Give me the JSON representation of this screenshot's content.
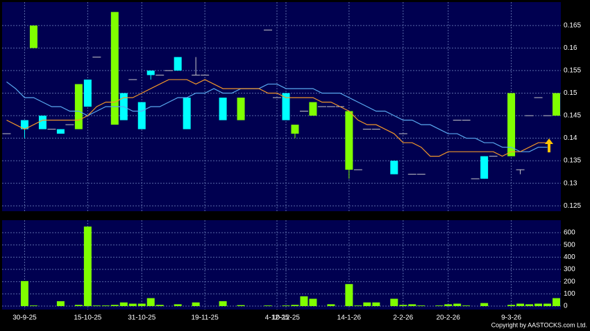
{
  "chart_data": [
    {
      "type": "candlestick",
      "categories": [
        null,
        null,
        "30-9-25",
        null,
        null,
        null,
        null,
        null,
        null,
        "15-10-25",
        null,
        null,
        null,
        null,
        null,
        "31-10-25",
        null,
        null,
        null,
        null,
        null,
        null,
        "19-11-25",
        null,
        null,
        null,
        null,
        null,
        null,
        null,
        "4-12-25",
        "10-12-25",
        null,
        null,
        null,
        null,
        null,
        null,
        "14-1-26",
        null,
        null,
        null,
        null,
        null,
        "2-2-26",
        null,
        null,
        null,
        null,
        "20-2-26",
        null,
        null,
        null,
        null,
        null,
        null,
        "9-3-26",
        null,
        null,
        null,
        null,
        null
      ],
      "open": [
        0.141,
        null,
        0.144,
        0.16,
        0.145,
        0.142,
        0.142,
        0.143,
        0.142,
        0.153,
        0.158,
        null,
        0.143,
        0.15,
        0.153,
        0.148,
        0.155,
        0.154,
        0.155,
        0.158,
        0.149,
        0.154,
        0.154,
        null,
        0.149,
        null,
        0.144,
        null,
        null,
        0.164,
        0.149,
        0.15,
        0.141,
        0.146,
        0.145,
        0.147,
        0.147,
        0.147,
        0.133,
        0.133,
        0.142,
        0.142,
        null,
        0.135,
        0.141,
        0.132,
        0.132,
        null,
        null,
        null,
        0.144,
        0.144,
        0.131,
        0.136,
        0.136,
        null,
        0.136,
        0.133,
        0.145,
        0.149,
        0.145,
        0.145
      ],
      "high": [
        0.141,
        null,
        0.144,
        0.165,
        0.145,
        0.142,
        0.142,
        0.143,
        0.152,
        0.153,
        0.158,
        null,
        0.168,
        0.15,
        0.153,
        0.148,
        0.155,
        0.154,
        0.155,
        0.158,
        0.149,
        0.158,
        0.154,
        null,
        0.149,
        null,
        0.149,
        null,
        null,
        0.164,
        0.149,
        0.15,
        0.143,
        0.146,
        0.148,
        0.147,
        0.147,
        0.147,
        0.146,
        0.133,
        0.142,
        0.142,
        null,
        0.135,
        0.141,
        0.132,
        0.132,
        null,
        null,
        null,
        0.144,
        0.144,
        0.131,
        0.136,
        0.136,
        null,
        0.15,
        0.133,
        0.145,
        0.149,
        0.145,
        0.15
      ],
      "low": [
        0.141,
        null,
        0.14,
        0.16,
        0.142,
        0.142,
        0.141,
        0.143,
        0.142,
        0.147,
        0.158,
        null,
        0.143,
        0.144,
        0.153,
        0.142,
        0.153,
        0.154,
        0.155,
        0.155,
        0.142,
        0.154,
        0.154,
        null,
        0.144,
        null,
        0.144,
        null,
        null,
        0.164,
        0.149,
        0.144,
        0.14,
        0.146,
        0.145,
        0.147,
        0.147,
        0.147,
        0.131,
        0.133,
        0.142,
        0.142,
        null,
        0.132,
        0.141,
        0.132,
        0.132,
        null,
        null,
        null,
        0.144,
        0.144,
        0.131,
        0.131,
        0.136,
        null,
        0.136,
        0.132,
        0.145,
        0.149,
        0.145,
        0.145
      ],
      "close": [
        0.141,
        null,
        0.142,
        0.165,
        0.142,
        0.142,
        0.141,
        0.143,
        0.152,
        0.147,
        0.158,
        null,
        0.168,
        0.144,
        0.153,
        0.142,
        0.154,
        0.154,
        0.155,
        0.155,
        0.142,
        0.154,
        0.154,
        null,
        0.144,
        null,
        0.149,
        null,
        null,
        0.164,
        0.149,
        0.144,
        0.143,
        0.146,
        0.148,
        0.147,
        0.147,
        0.147,
        0.146,
        0.133,
        0.142,
        0.142,
        null,
        0.132,
        0.141,
        0.132,
        0.132,
        null,
        null,
        null,
        0.144,
        0.144,
        0.131,
        0.131,
        0.136,
        null,
        0.15,
        0.133,
        0.145,
        0.149,
        0.145,
        0.15
      ],
      "up_color": "#80ff00",
      "down_color": "#00ffff",
      "flat_color": "#c8c8c8",
      "series": [
        {
          "color": "#5aaaf0",
          "values": [
            0.1525,
            0.151,
            0.149,
            0.149,
            0.148,
            0.147,
            0.147,
            0.146,
            0.146,
            0.145,
            0.146,
            0.147,
            0.147,
            0.147,
            0.146,
            0.146,
            0.147,
            0.147,
            0.148,
            0.149,
            0.149,
            0.15,
            0.15,
            0.151,
            0.15,
            0.15,
            0.151,
            0.151,
            0.151,
            0.152,
            0.152,
            0.151,
            0.151,
            0.151,
            0.151,
            0.15,
            0.15,
            0.15,
            0.149,
            0.148,
            0.147,
            0.146,
            0.146,
            0.145,
            0.144,
            0.144,
            0.143,
            0.143,
            0.142,
            0.141,
            0.141,
            0.14,
            0.14,
            0.139,
            0.139,
            0.138,
            0.138,
            0.137,
            0.137,
            0.138,
            0.138,
            null
          ]
        },
        {
          "color": "#f0962a",
          "values": [
            0.144,
            0.143,
            0.142,
            0.143,
            0.144,
            0.144,
            0.144,
            0.144,
            0.144,
            0.145,
            0.147,
            0.148,
            0.148,
            0.149,
            0.149,
            0.15,
            0.151,
            0.152,
            0.153,
            0.153,
            0.153,
            0.152,
            0.153,
            0.152,
            0.151,
            0.151,
            0.151,
            0.151,
            0.151,
            0.15,
            0.15,
            0.149,
            0.149,
            0.149,
            0.149,
            0.148,
            0.148,
            0.147,
            0.146,
            0.144,
            0.143,
            0.143,
            0.142,
            0.141,
            0.139,
            0.139,
            0.138,
            0.136,
            0.136,
            0.137,
            0.137,
            0.137,
            0.137,
            0.137,
            0.137,
            0.136,
            0.137,
            0.137,
            0.138,
            0.139,
            0.139,
            null
          ]
        }
      ],
      "ylim": [
        0.1238,
        0.1702
      ],
      "yticks": [
        0.125,
        0.13,
        0.135,
        0.14,
        0.145,
        0.15,
        0.155,
        0.16,
        0.165
      ],
      "grid": true
    },
    {
      "type": "bar",
      "values": [
        null,
        null,
        205,
        5,
        null,
        null,
        40,
        null,
        10,
        650,
        5,
        5,
        10,
        30,
        20,
        20,
        65,
        10,
        null,
        15,
        null,
        30,
        null,
        null,
        40,
        null,
        8,
        null,
        null,
        5,
        null,
        5,
        10,
        80,
        60,
        null,
        15,
        null,
        180,
        5,
        30,
        30,
        null,
        60,
        10,
        15,
        5,
        null,
        5,
        15,
        20,
        5,
        null,
        25,
        null,
        null,
        10,
        20,
        15,
        20,
        20,
        65
      ],
      "color": "#80ff00",
      "ylim": [
        -28,
        702
      ],
      "yticks": [
        0,
        100,
        200,
        300,
        400,
        500,
        600
      ],
      "grid": true
    },
    {
      "copyright": "Copyright by AASTOCKS.com Ltd."
    }
  ]
}
